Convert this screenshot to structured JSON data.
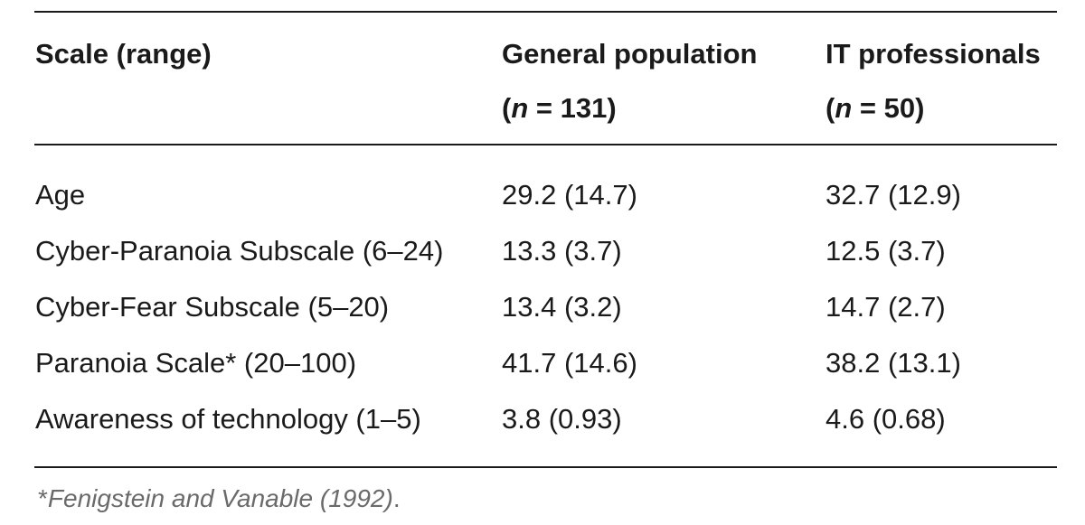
{
  "header": {
    "col1": "Scale (range)",
    "col2_line1": "General population",
    "col2_open": "(",
    "col2_var": "n",
    "col2_rest": " = 131)",
    "col3_line1": "IT professionals",
    "col3_open": "(",
    "col3_var": "n",
    "col3_rest": " = 50)"
  },
  "rows": [
    {
      "scale": "Age",
      "general": "29.2 (14.7)",
      "it": "32.7 (12.9)"
    },
    {
      "scale": "Cyber-Paranoia Subscale (6–24)",
      "general": "13.3 (3.7)",
      "it": "12.5 (3.7)"
    },
    {
      "scale": "Cyber-Fear Subscale (5–20)",
      "general": "13.4 (3.2)",
      "it": "14.7 (2.7)"
    },
    {
      "scale": "Paranoia Scale* (20–100)",
      "general": "41.7 (14.6)",
      "it": "38.2 (13.1)"
    },
    {
      "scale": "Awareness of technology (1–5)",
      "general": "3.8 (0.93)",
      "it": "4.6 (0.68)"
    }
  ],
  "footnote": {
    "marker": "*",
    "reference": "Fenigstein and Vanable (1992)",
    "end": "."
  }
}
